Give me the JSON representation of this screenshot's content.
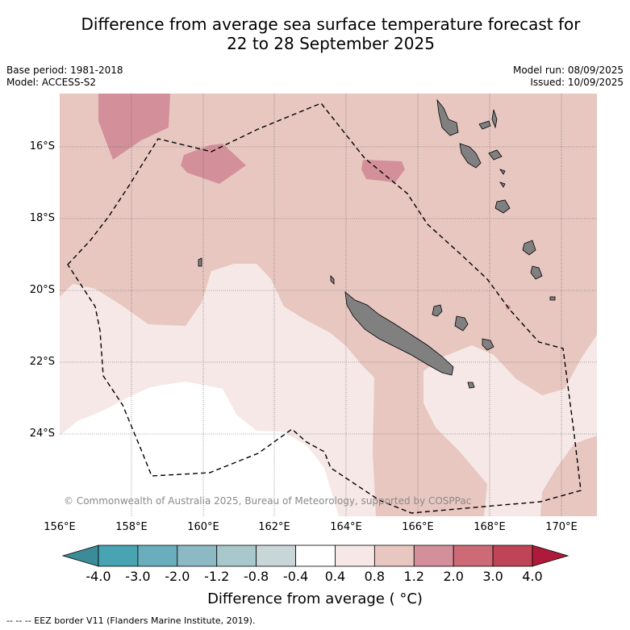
{
  "title": {
    "line1": "Difference from average sea surface temperature forecast for",
    "line2": "22 to 28 September 2025"
  },
  "meta": {
    "base_period": "Base period: 1981-2018",
    "model": "Model: ACCESS-S2",
    "model_run": "Model run: 08/09/2025",
    "issued": "Issued: 10/09/2025"
  },
  "lat_labels": [
    "16°S",
    "18°S",
    "20°S",
    "22°S",
    "24°S"
  ],
  "lon_labels": [
    "156°E",
    "158°E",
    "160°E",
    "162°E",
    "164°E",
    "166°E",
    "168°E",
    "170°E"
  ],
  "credit": "© Commonwealth of Australia 2025, Bureau of Meteorology, supported by COSPPac",
  "colorbar": {
    "ticks": [
      "-4.0",
      "-3.0",
      "-2.0",
      "-1.2",
      "-0.8",
      "-0.4",
      "0.4",
      "0.8",
      "1.2",
      "2.0",
      "3.0",
      "4.0"
    ],
    "colors": [
      "#3b8c98",
      "#48a3b3",
      "#6aaebd",
      "#8cb9c4",
      "#a8c8cc",
      "#c9d6d8",
      "#ffffff",
      "#f5e8e6",
      "#e8c7c1",
      "#d4909a",
      "#cc6a76",
      "#bf4556",
      "#b01a3a"
    ],
    "title": "Difference from average ( °C)"
  },
  "footnote": "--  --  -- EEZ border V11 (Flanders Marine Institute, 2019).",
  "map_colors": {
    "land": "#808080",
    "warm_0_8_1_2": "#e8c7c1",
    "warm_1_2_2_0": "#d4909a",
    "near_0_4_0_8": "#f5e8e6",
    "neutral": "#ffffff"
  }
}
